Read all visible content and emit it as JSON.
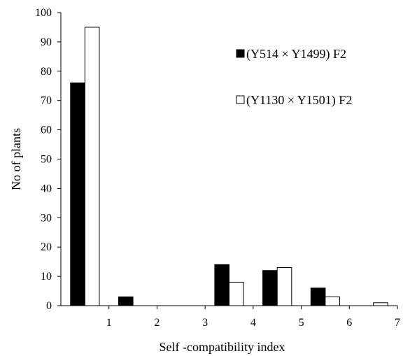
{
  "chart_data": {
    "type": "bar",
    "title": "",
    "xlabel": "Self -compatibility index",
    "ylabel": "No of  plants",
    "x_ticks": [
      "1",
      "2",
      "3",
      "4",
      "5",
      "6",
      "7"
    ],
    "y_ticks": [
      "0",
      "10",
      "20",
      "30",
      "40",
      "50",
      "60",
      "70",
      "80",
      "90",
      "100"
    ],
    "xlim": [
      0,
      7
    ],
    "ylim": [
      0,
      100
    ],
    "bin_centers": [
      0.5,
      1.5,
      2.5,
      3.5,
      4.5,
      5.5,
      6.5
    ],
    "grid": false,
    "legend_position": "top-right",
    "series": [
      {
        "name": "(Y514 × Y1499) F2",
        "fill": "#000000",
        "values": [
          76,
          3,
          0,
          14,
          12,
          6,
          0
        ]
      },
      {
        "name": "(Y1130 × Y1501) F2",
        "fill": "#ffffff",
        "values": [
          95,
          0,
          0,
          8,
          13,
          3,
          1
        ]
      }
    ]
  }
}
